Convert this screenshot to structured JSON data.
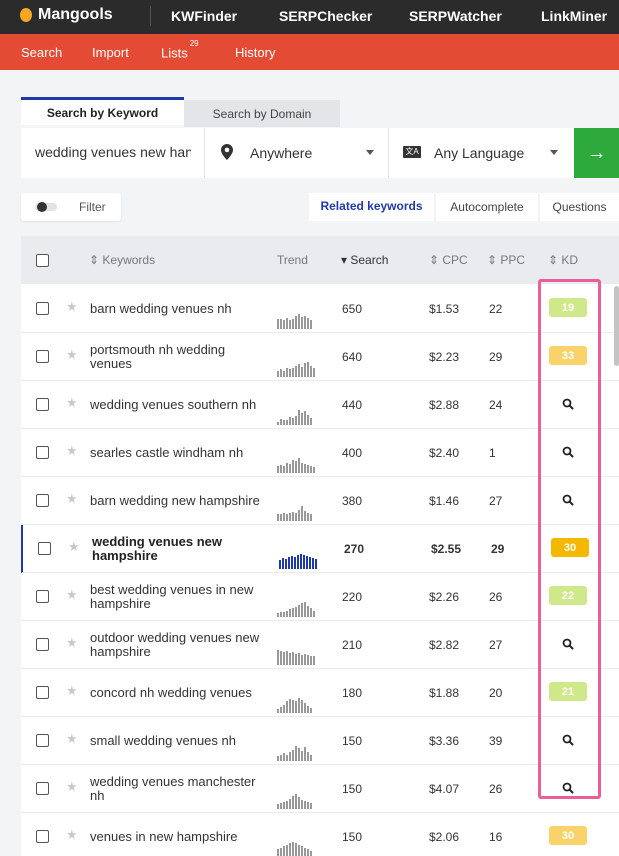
{
  "topbar": {
    "logo": "Mangools",
    "apps": [
      "KWFinder",
      "SERPChecker",
      "SERPWatcher",
      "LinkMiner"
    ]
  },
  "subnav": {
    "search": "Search",
    "import": "Import",
    "lists": "Lists",
    "lists_count": "29",
    "history": "History"
  },
  "tabs": {
    "by_keyword": "Search by Keyword",
    "by_domain": "Search by Domain"
  },
  "search": {
    "keyword_value": "wedding venues new han",
    "location": "Anywhere",
    "language": "Any Language",
    "lang_icon_text": "文A"
  },
  "filter_label": "Filter",
  "segments": [
    "Related keywords",
    "Autocomplete",
    "Questions"
  ],
  "table": {
    "headers": {
      "keywords": "Keywords",
      "trend": "Trend",
      "search": "Search",
      "cpc": "CPC",
      "ppc": "PPC",
      "kd": "KD"
    },
    "rows": [
      {
        "keyword": "barn wedding venues nh",
        "search": "650",
        "cpc": "$1.53",
        "ppc": "22",
        "kd": "19",
        "kd_color": "#cfe88a",
        "trend": [
          9,
          9,
          8,
          10,
          8,
          9,
          12,
          14,
          11,
          12,
          10,
          8
        ]
      },
      {
        "keyword": "portsmouth nh wedding venues",
        "search": "640",
        "cpc": "$2.23",
        "ppc": "29",
        "kd": "33",
        "kd_color": "#f8d36a",
        "trend": [
          5,
          6,
          5,
          7,
          6,
          7,
          9,
          10,
          8,
          11,
          12,
          9,
          7
        ]
      },
      {
        "keyword": "wedding venues southern nh",
        "search": "440",
        "cpc": "$2.88",
        "ppc": "24",
        "kd": "",
        "kd_color": "",
        "trend": [
          3,
          5,
          4,
          4,
          7,
          6,
          8,
          13,
          10,
          12,
          9,
          6
        ]
      },
      {
        "keyword": "searles castle windham nh",
        "search": "400",
        "cpc": "$2.40",
        "ppc": "1",
        "kd": "",
        "kd_color": "",
        "trend": [
          6,
          7,
          6,
          9,
          8,
          11,
          10,
          13,
          9,
          8,
          7,
          6,
          5
        ]
      },
      {
        "keyword": "barn wedding new hampshire",
        "search": "380",
        "cpc": "$1.46",
        "ppc": "27",
        "kd": "",
        "kd_color": "",
        "trend": [
          7,
          7,
          8,
          7,
          9,
          10,
          9,
          12,
          16,
          11,
          9,
          7
        ]
      },
      {
        "keyword": "wedding venues new hampshire",
        "search": "270",
        "cpc": "$2.55",
        "ppc": "29",
        "kd": "30",
        "kd_color": "#f5b800",
        "trend": [
          9,
          11,
          10,
          12,
          13,
          12,
          14,
          15,
          14,
          13,
          12,
          11,
          10
        ],
        "active": true
      },
      {
        "keyword": "best wedding venues in new hampshire",
        "search": "220",
        "cpc": "$2.26",
        "ppc": "26",
        "kd": "22",
        "kd_color": "#cfe88a",
        "trend": [
          4,
          5,
          5,
          6,
          7,
          8,
          9,
          11,
          13,
          14,
          10,
          8,
          6
        ]
      },
      {
        "keyword": "outdoor wedding venues new hampshire",
        "search": "210",
        "cpc": "$2.82",
        "ppc": "27",
        "kd": "",
        "kd_color": "",
        "trend": [
          14,
          13,
          12,
          13,
          11,
          12,
          10,
          11,
          9,
          10,
          9,
          8,
          8
        ]
      },
      {
        "keyword": "concord nh wedding venues",
        "search": "180",
        "cpc": "$1.88",
        "ppc": "20",
        "kd": "21",
        "kd_color": "#cfe88a",
        "trend": [
          4,
          6,
          8,
          12,
          14,
          13,
          12,
          15,
          13,
          10,
          7,
          5
        ]
      },
      {
        "keyword": "small wedding venues nh",
        "search": "150",
        "cpc": "$3.36",
        "ppc": "39",
        "kd": "",
        "kd_color": "",
        "trend": [
          4,
          5,
          6,
          5,
          7,
          9,
          12,
          10,
          8,
          11,
          7,
          5
        ]
      },
      {
        "keyword": "wedding venues manchester nh",
        "search": "150",
        "cpc": "$4.07",
        "ppc": "26",
        "kd": "",
        "kd_color": "",
        "trend": [
          4,
          5,
          6,
          7,
          9,
          11,
          13,
          10,
          8,
          7,
          6,
          5
        ]
      },
      {
        "keyword": "venues in new hampshire",
        "search": "150",
        "cpc": "$2.06",
        "ppc": "16",
        "kd": "30",
        "kd_color": "#f8d36a",
        "trend": [
          5,
          6,
          7,
          8,
          9,
          10,
          9,
          8,
          7,
          6,
          5,
          4
        ]
      }
    ]
  }
}
